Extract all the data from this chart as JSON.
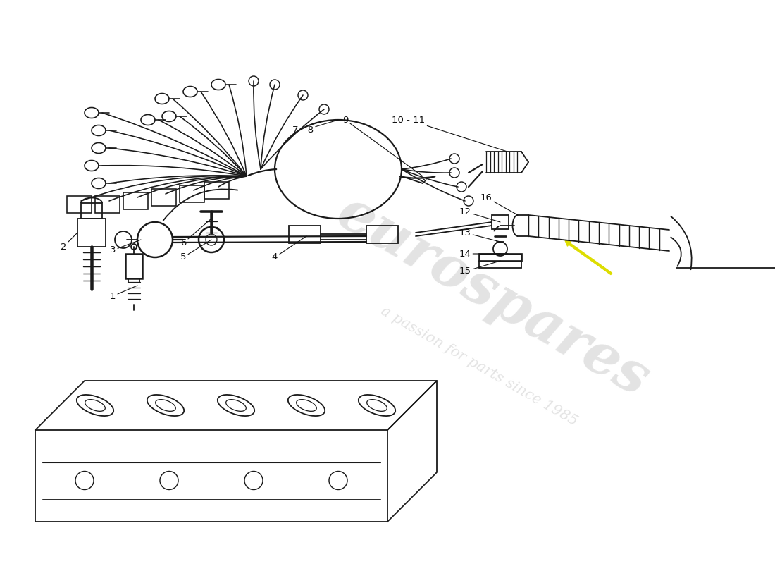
{
  "bg_color": "#ffffff",
  "line_color": "#1a1a1a",
  "lw": 1.3,
  "watermark1": "eurospares",
  "watermark2": "a passion for parts since 1985",
  "wm_color": "#c8c8c8",
  "wm_alpha": 0.5,
  "arrow_color": "#dddd00",
  "label_fontsize": 9.5,
  "label_color": "#111111"
}
